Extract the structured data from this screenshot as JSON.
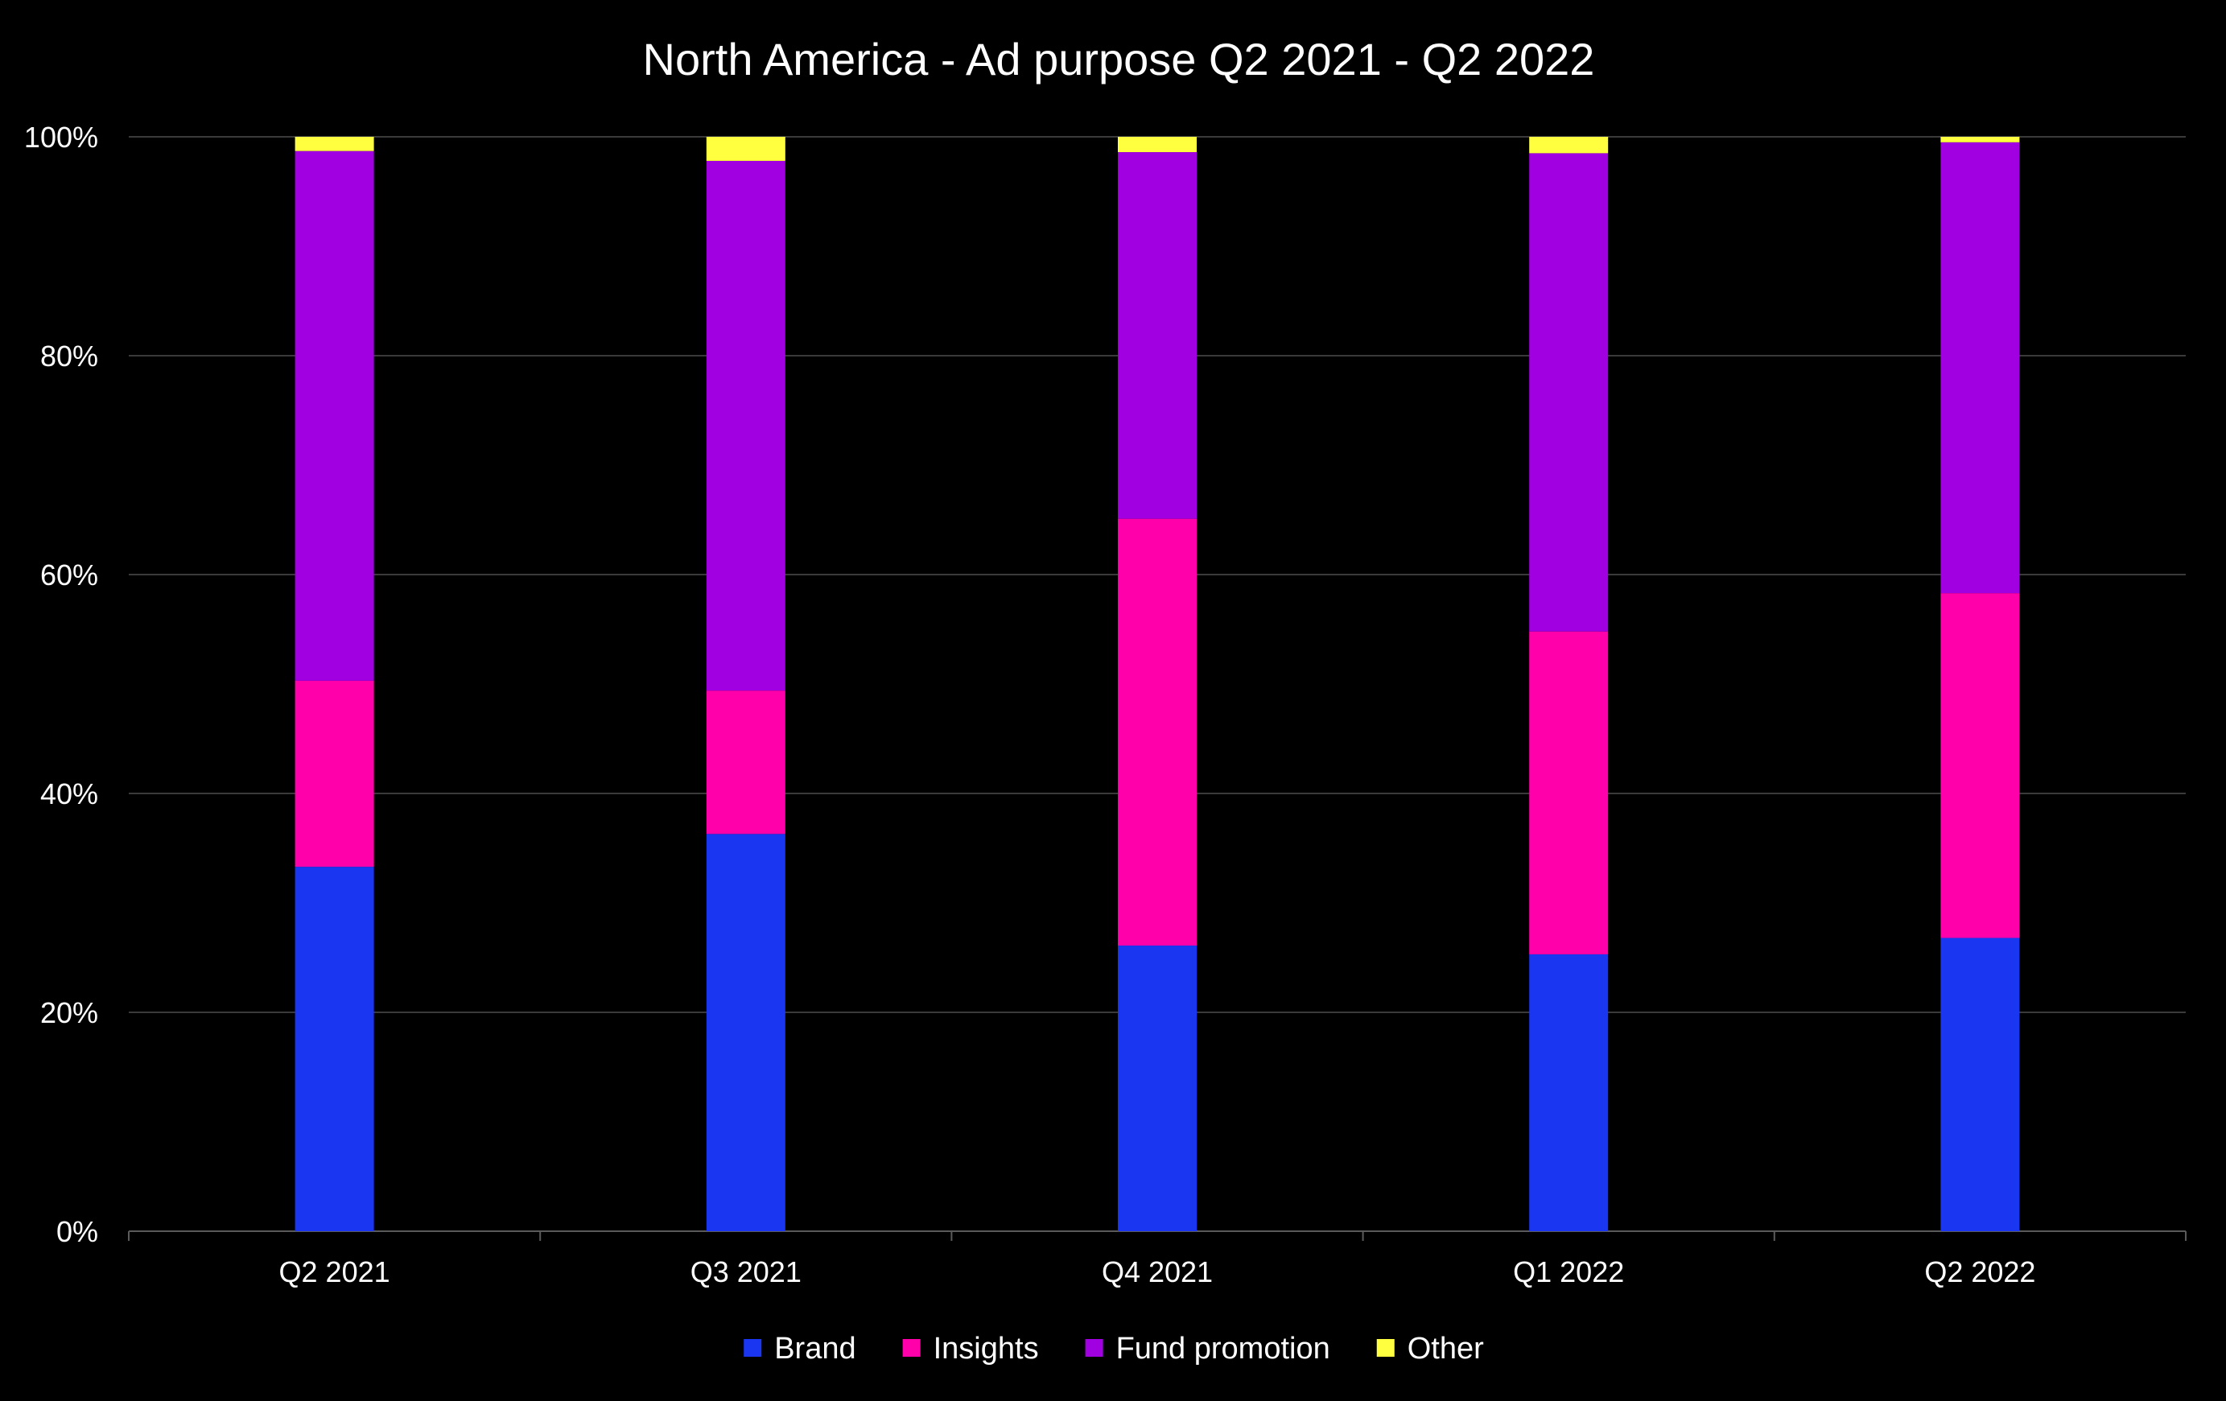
{
  "chart_data": {
    "type": "bar",
    "stacked": true,
    "percent": true,
    "title": "North America - Ad purpose Q2 2021 - Q2 2022",
    "xlabel": "",
    "ylabel": "",
    "ylim": [
      0,
      100
    ],
    "yticks": [
      "0%",
      "20%",
      "40%",
      "60%",
      "80%",
      "100%"
    ],
    "grid": true,
    "legend_position": "bottom",
    "categories": [
      "Q2 2021",
      "Q3 2021",
      "Q4 2021",
      "Q1 2022",
      "Q2 2022"
    ],
    "series": [
      {
        "name": "Brand",
        "color": "#1a36f0",
        "values": [
          33.3,
          36.3,
          26.1,
          25.3,
          26.8
        ]
      },
      {
        "name": "Insights",
        "color": "#ff00aa",
        "values": [
          17.0,
          13.1,
          39.0,
          29.5,
          31.5
        ]
      },
      {
        "name": "Fund promotion",
        "color": "#a100e0",
        "values": [
          48.4,
          48.4,
          33.5,
          43.7,
          41.2
        ]
      },
      {
        "name": "Other",
        "color": "#ffff40",
        "values": [
          1.3,
          2.2,
          1.4,
          1.5,
          0.5
        ]
      }
    ]
  },
  "colors": {
    "background": "#000000",
    "text": "#ffffff",
    "grid": "#3a3a3a",
    "axis": "#5a5a5a"
  }
}
